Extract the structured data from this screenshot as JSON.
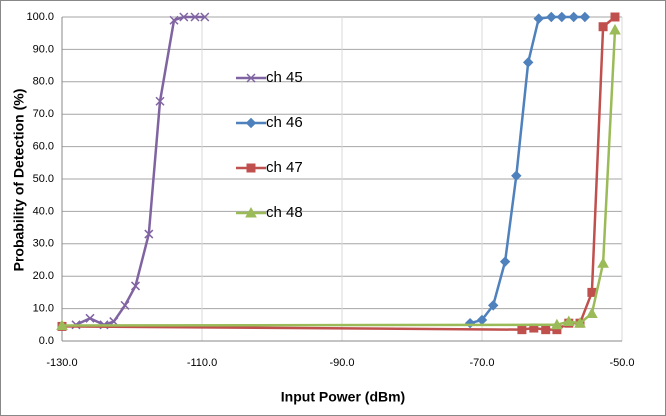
{
  "chart_data": {
    "type": "line",
    "xlabel": "Input Power (dBm)",
    "ylabel": "Probability of Detection (%)",
    "xlim": [
      -130,
      -50
    ],
    "ylim": [
      0,
      100
    ],
    "xticks": [
      {
        "value": -130,
        "label": "-130.0"
      },
      {
        "value": -110,
        "label": "-110.0"
      },
      {
        "value": -90,
        "label": "-90.0"
      },
      {
        "value": -70,
        "label": "-70.0"
      },
      {
        "value": -50,
        "label": "-50.0"
      }
    ],
    "yticks": [
      {
        "value": 0,
        "label": "0.0"
      },
      {
        "value": 10,
        "label": "10.0"
      },
      {
        "value": 20,
        "label": "20.0"
      },
      {
        "value": 30,
        "label": "30.0"
      },
      {
        "value": 40,
        "label": "40.0"
      },
      {
        "value": 50,
        "label": "50.0"
      },
      {
        "value": 60,
        "label": "60.0"
      },
      {
        "value": 70,
        "label": "70.0"
      },
      {
        "value": 80,
        "label": "80.0"
      },
      {
        "value": 90,
        "label": "90.0"
      },
      {
        "value": 100,
        "label": "100.0"
      }
    ],
    "grid": true,
    "series": [
      {
        "name": "ch 45",
        "color": "#8064a2",
        "marker": "x",
        "x": [
          -128,
          -126,
          -124,
          -122.6,
          -121,
          -119.5,
          -117.6,
          -116,
          -114,
          -112.6,
          -111,
          -109.6
        ],
        "values": [
          5,
          7,
          5,
          6,
          11,
          17,
          33,
          74,
          99,
          100,
          100,
          100
        ]
      },
      {
        "name": "ch 46",
        "color": "#4f81bd",
        "marker": "diamond",
        "x": [
          -71.7,
          -70,
          -68.4,
          -66.7,
          -65.1,
          -63.4,
          -61.9,
          -60.1,
          -58.6,
          -56.9,
          -55.3
        ],
        "values": [
          5.5,
          6.5,
          11,
          24.5,
          51,
          86,
          99.5,
          100,
          100,
          100,
          100
        ]
      },
      {
        "name": "ch 47",
        "color": "#c0504d",
        "marker": "square",
        "x": [
          -130,
          -64.3,
          -62.6,
          -60.9,
          -59.3,
          -57.6,
          -56,
          -54.3,
          -52.7,
          -51
        ],
        "values": [
          4.5,
          3.5,
          4,
          3.5,
          3.5,
          5.5,
          5.5,
          15,
          97,
          100
        ]
      },
      {
        "name": "ch 48",
        "color": "#9bbb59",
        "marker": "triangle",
        "x": [
          -130,
          -59.3,
          -57.6,
          -56,
          -54.3,
          -52.7,
          -51
        ],
        "values": [
          4.8,
          5,
          6,
          5.5,
          8.5,
          24,
          96
        ]
      }
    ]
  }
}
